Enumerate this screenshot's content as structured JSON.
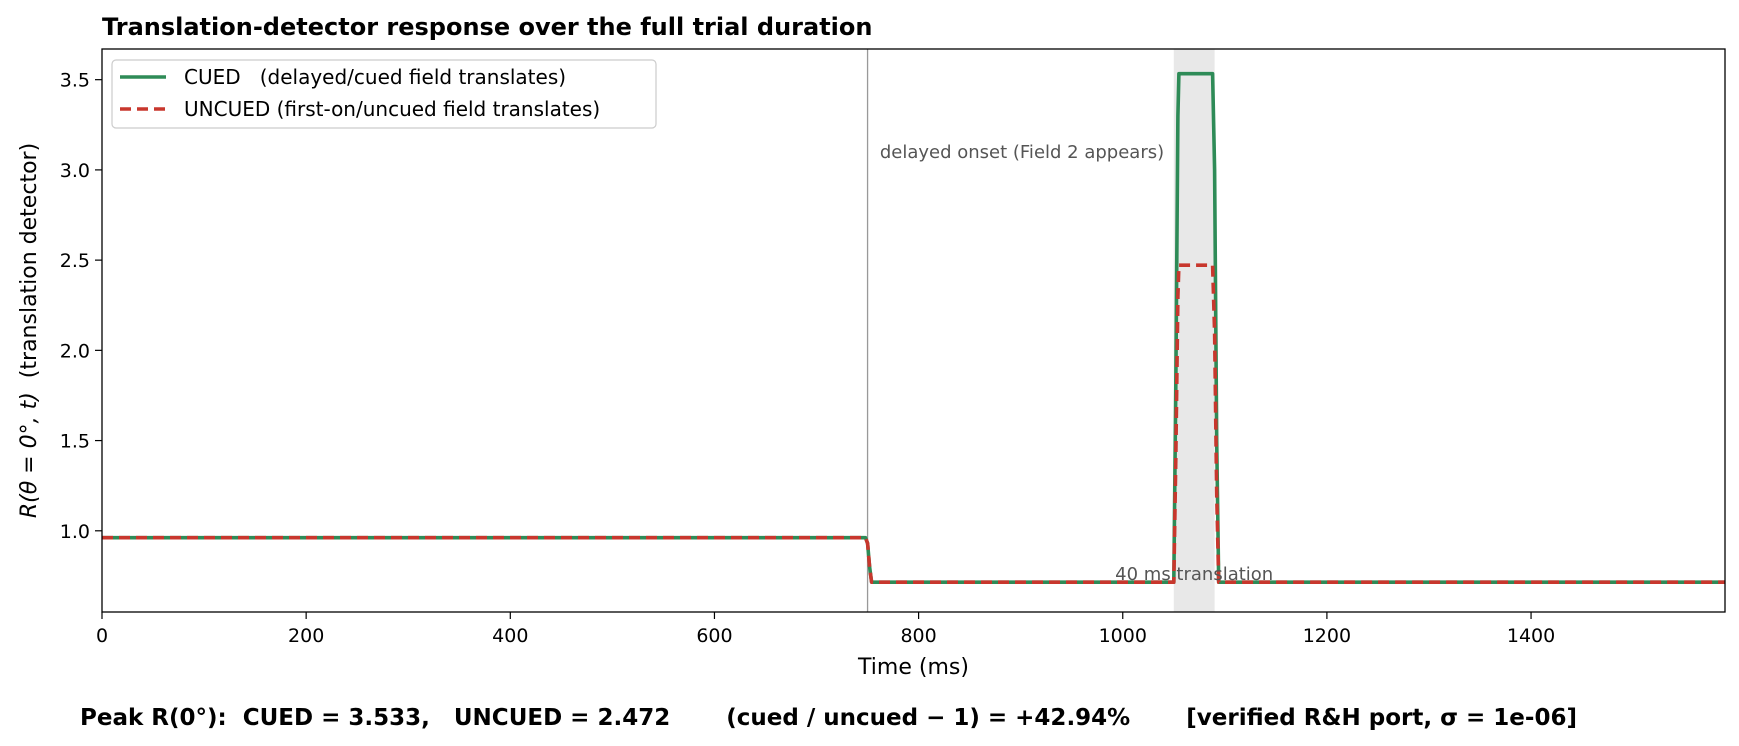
{
  "chart_data": {
    "type": "line",
    "title": "Translation-detector response over the full trial duration",
    "xlabel": "Time (ms)",
    "ylabel": "(translation detector)",
    "ylabel_math": "R(θ = 0°, t)",
    "xlim": [
      0,
      1590
    ],
    "ylim": [
      0.55,
      3.67
    ],
    "xticks": [
      0,
      200,
      400,
      600,
      800,
      1000,
      1200,
      1400
    ],
    "yticks": [
      1.0,
      1.5,
      2.0,
      2.5,
      3.0,
      3.5
    ],
    "xtick_labels": [
      "0",
      "200",
      "400",
      "600",
      "800",
      "1000",
      "1200",
      "1400"
    ],
    "ytick_labels": [
      "1.0",
      "1.5",
      "2.0",
      "2.5",
      "3.0",
      "3.5"
    ],
    "grid": false,
    "legend_position": "top-left",
    "series": [
      {
        "name": "CUED   (delayed/cued field translates)",
        "color": "#2e8b57",
        "style": "solid",
        "x": [
          0,
          748,
          750,
          752,
          754,
          1050,
          1052,
          1054,
          1055,
          1088,
          1090,
          1092,
          1094,
          1590
        ],
        "y": [
          0.962,
          0.962,
          0.93,
          0.8,
          0.715,
          0.715,
          1.8,
          3.3,
          3.533,
          3.533,
          3.0,
          1.5,
          0.715,
          0.715
        ]
      },
      {
        "name": "UNCUED (first-on/uncued field translates)",
        "color": "#c8372d",
        "style": "dashed",
        "x": [
          0,
          748,
          750,
          752,
          754,
          1050,
          1052,
          1054,
          1055,
          1088,
          1090,
          1092,
          1094,
          1590
        ],
        "y": [
          0.962,
          0.962,
          0.93,
          0.8,
          0.715,
          0.715,
          1.4,
          2.3,
          2.472,
          2.472,
          2.1,
          1.2,
          0.715,
          0.715
        ]
      }
    ],
    "markers": {
      "onset_line_x": 750,
      "translation_span": [
        1050,
        1090
      ]
    },
    "annotations": [
      {
        "text": "delayed onset (Field 2 appears)",
        "x": 762,
        "y": 3.1
      },
      {
        "text": "40 ms translation",
        "x": 1070,
        "y": 0.76
      }
    ]
  },
  "footer": {
    "summary": "Peak R(0°):  CUED = 3.533,   UNCUED = 2.472       (cued / uncued − 1) = +42.94%       [verified R&H port, σ = 1e-06]"
  },
  "colors": {
    "cued": "#2e8b57",
    "uncued": "#c8372d",
    "shade": "#e8e8e8",
    "onset_line": "#999999"
  }
}
